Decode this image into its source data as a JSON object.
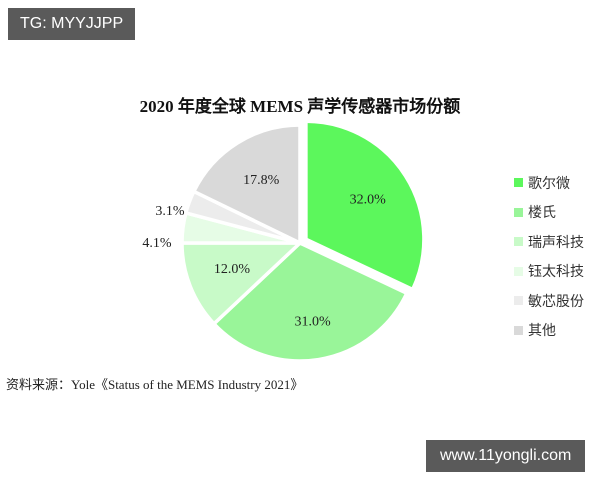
{
  "watermarks": {
    "top_left": "TG: MYYJJPP",
    "bottom_right": "www.11yongli.com"
  },
  "chart_data": {
    "type": "pie",
    "title": "2020 年度全球 MEMS 声学传感器市场份额",
    "categories": [
      "歌尔微",
      "楼氏",
      "瑞声科技",
      "钰太科技",
      "敏芯股份",
      "其他"
    ],
    "values": [
      32.0,
      31.0,
      12.0,
      4.1,
      3.1,
      17.8
    ],
    "labels": [
      "32.0%",
      "31.0%",
      "12.0%",
      "4.1%",
      "3.1%",
      "17.8%"
    ],
    "colors": [
      "#5cf75c",
      "#99f599",
      "#c8fac8",
      "#e6fce6",
      "#ececec",
      "#d9d9d9"
    ],
    "legend_position": "right",
    "start_angle": "12 o'clock, clockwise",
    "source": "资料来源：Yole《Status of the MEMS Industry 2021》"
  }
}
